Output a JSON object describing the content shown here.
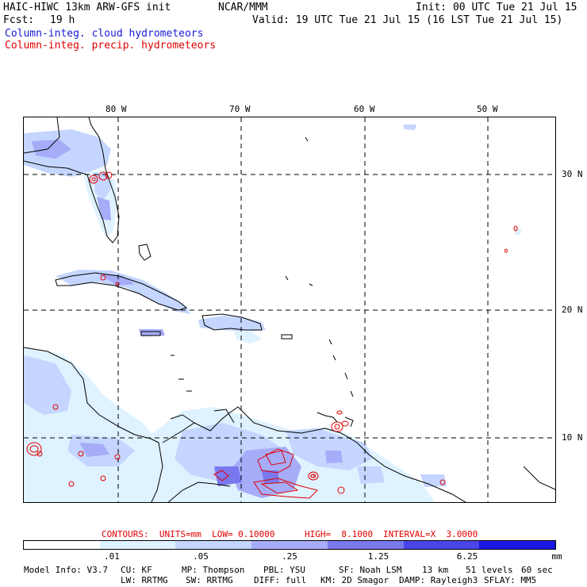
{
  "header": {
    "model_title": "HAIC-HIWC 13km ARW-GFS init",
    "ncar": "NCAR/MMM",
    "init": "Init: 00 UTC Tue 21 Jul 15",
    "fcst_label": "Fcst:",
    "fcst_value": "19 h",
    "valid": "Valid: 19 UTC Tue 21 Jul 15 (16 LST Tue 21 Jul 15)",
    "legend_cloud": "Column-integ. cloud hydrometeors",
    "legend_precip": "Column-integ. precip. hydrometeors"
  },
  "axes": {
    "longitudes": [
      "80 W",
      "70 W",
      "60 W",
      "50 W"
    ],
    "latitudes": [
      "30 N",
      "20 N",
      "10 N"
    ]
  },
  "contours": {
    "label": "CONTOURS:  UNITS=mm  LOW= 0.10000",
    "high": "HIGH=  8.1000",
    "interval": "INTERVAL=X  3.0000"
  },
  "colorbar": {
    "colors": [
      "#ffffff",
      "#dff2ff",
      "#c4d6ff",
      "#a6acf8",
      "#7a78ee",
      "#4a45e8",
      "#1b17e5"
    ],
    "labels": [
      ".01",
      ".05",
      ".25",
      "1.25",
      "6.25"
    ],
    "units": "mm"
  },
  "footer": {
    "line1": [
      "Model Info: V3.7",
      "CU: KF",
      "MP: Thompson",
      "PBL: YSU",
      "SF: Noah LSM",
      "13 km",
      "51 levels",
      "60 sec"
    ],
    "line2": [
      "LW: RRTMG",
      "SW: RRTMG",
      "DIFF: full",
      "KM: 2D Smagor",
      "DAMP: Rayleigh3",
      "SFLAY: MM5"
    ]
  }
}
